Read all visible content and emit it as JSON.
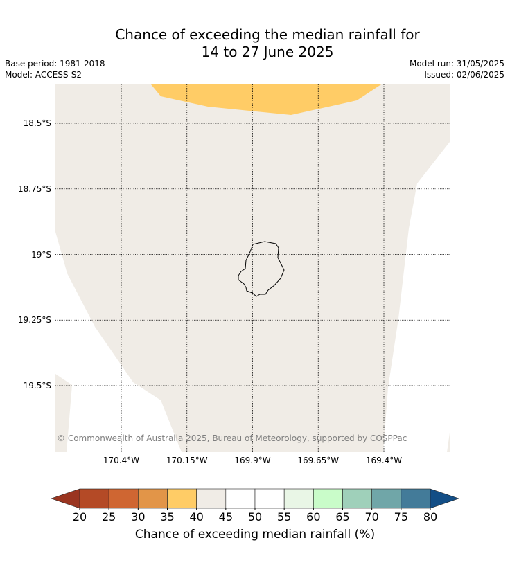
{
  "title_line1": "Chance of exceeding the median rainfall for",
  "title_line2": "14 to 27 June 2025",
  "base_period": "Base period: 1981-2018",
  "model": "Model: ACCESS-S2",
  "model_run": "Model run: 31/05/2025",
  "issued": "Issued: 02/06/2025",
  "copyright": "© Commonwealth of Australia 2025, Bureau of Meteorology, supported by COSPPac",
  "map": {
    "lat_ticks": [
      {
        "value": -18.5,
        "label": "18.5°S"
      },
      {
        "value": -18.75,
        "label": "18.75°S"
      },
      {
        "value": -19.0,
        "label": "19°S"
      },
      {
        "value": -19.25,
        "label": "19.25°S"
      },
      {
        "value": -19.5,
        "label": "19.5°S"
      }
    ],
    "lon_ticks": [
      {
        "value": -170.4,
        "label": "170.4°W"
      },
      {
        "value": -170.15,
        "label": "170.15°W"
      },
      {
        "value": -169.9,
        "label": "169.9°W"
      },
      {
        "value": -169.65,
        "label": "169.65°W"
      },
      {
        "value": -169.4,
        "label": "169.4°W"
      }
    ],
    "colors": {
      "category_35_40": "#ffcc66",
      "category_40_45": "#f0ece6",
      "island_outline": "#000000",
      "gridline": "#000000"
    }
  },
  "colorbar": {
    "label": "Chance of exceeding median rainfall (%)",
    "ticks": [
      "20",
      "25",
      "30",
      "35",
      "40",
      "45",
      "50",
      "55",
      "60",
      "65",
      "70",
      "75",
      "80"
    ],
    "below_color": "#9a3520",
    "above_color": "#134e86",
    "colors": [
      "#b44a26",
      "#cf6632",
      "#e29548",
      "#ffcc66",
      "#f0ece6",
      "#ffffff",
      "#ffffff",
      "#e9f6e6",
      "#c9fcc9",
      "#9fd0ba",
      "#70a6a8",
      "#437b99"
    ]
  }
}
